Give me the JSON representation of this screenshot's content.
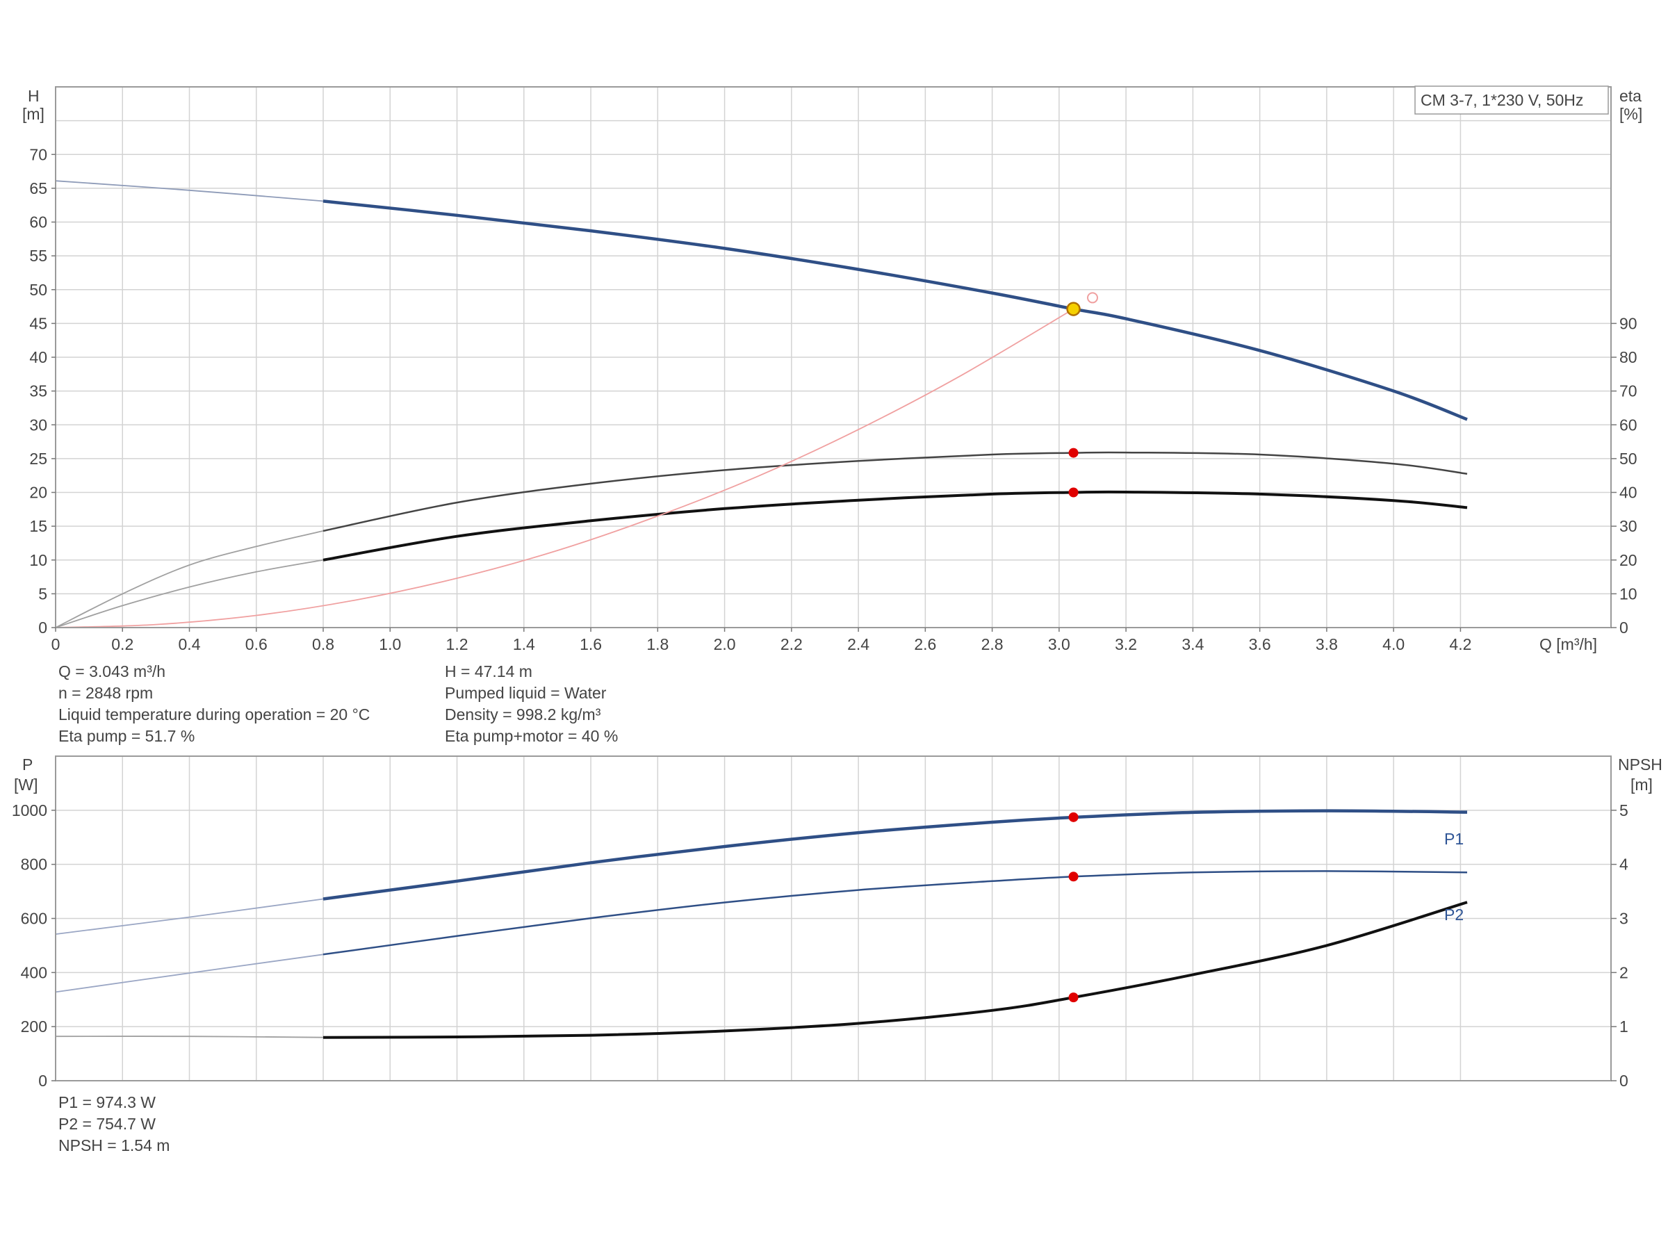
{
  "title_box": "CM 3-7, 1*230 V, 50Hz",
  "colors": {
    "head": "#2f4f86",
    "eta": "#111111",
    "eta_pump": "#444444",
    "system": "#f0a0a0",
    "power": "#2f4f86",
    "npsh": "#111111",
    "duty_point": "#e00000",
    "work_point": "#f5d000"
  },
  "info_top": {
    "left": [
      "Q = 3.043 m³/h",
      "n = 2848 rpm",
      "Liquid temperature during operation = 20 °C",
      "Eta pump = 51.7 %"
    ],
    "right": [
      "H = 47.14 m",
      "Pumped liquid = Water",
      "Density = 998.2 kg/m³",
      "Eta pump+motor = 40 %"
    ]
  },
  "info_bottom": [
    "P1 = 974.3 W",
    "P2 = 754.7 W",
    "NPSH = 1.54 m"
  ],
  "chart_data": [
    {
      "type": "line",
      "xlabel": "Q [m³/h]",
      "ylabel": "H\n[m]",
      "y2label": "eta\n[%]",
      "xlim": [
        0,
        4.65
      ],
      "ylim": [
        0,
        80
      ],
      "y2lim": [
        0,
        160
      ],
      "x_ticks": [
        "0",
        "0.2",
        "0.4",
        "0.6",
        "0.8",
        "1.0",
        "1.2",
        "1.4",
        "1.6",
        "1.8",
        "2.0",
        "2.2",
        "2.4",
        "2.6",
        "2.8",
        "3.0",
        "3.2",
        "3.4",
        "3.6",
        "3.8",
        "4.0",
        "4.2"
      ],
      "y_ticks": [
        "0",
        "5",
        "10",
        "15",
        "20",
        "25",
        "30",
        "35",
        "40",
        "45",
        "50",
        "55",
        "60",
        "65",
        "70"
      ],
      "y2_ticks": [
        "0",
        "10",
        "20",
        "30",
        "40",
        "50",
        "60",
        "70",
        "80",
        "90"
      ],
      "grid": true,
      "series": [
        {
          "id": "head",
          "axis": "left",
          "x_valid_from": 0.8,
          "x": [
            0,
            0.4,
            0.8,
            1.2,
            1.6,
            2.0,
            2.4,
            2.8,
            3.043,
            3.2,
            3.6,
            4.0,
            4.22
          ],
          "y": [
            66.1,
            64.7,
            63.1,
            61.0,
            58.7,
            56.1,
            53.0,
            49.5,
            47.14,
            45.7,
            41.0,
            35.0,
            30.8
          ]
        },
        {
          "id": "eta-pump",
          "axis": "right",
          "x_valid_from": 0.8,
          "x": [
            0,
            0.2,
            0.4,
            0.6,
            0.8,
            1.2,
            1.6,
            2.0,
            2.4,
            2.8,
            3.043,
            3.2,
            3.6,
            4.0,
            4.22
          ],
          "y": [
            0,
            10,
            18.5,
            24,
            28.6,
            37,
            42.6,
            46.6,
            49.3,
            51.2,
            51.7,
            51.8,
            51.2,
            48.5,
            45.5
          ]
        },
        {
          "id": "eta-pump-motor",
          "axis": "right",
          "x_valid_from": 0.8,
          "x": [
            0,
            0.2,
            0.4,
            0.6,
            0.8,
            1.2,
            1.6,
            2.0,
            2.4,
            2.8,
            3.043,
            3.2,
            3.6,
            4.0,
            4.22
          ],
          "y": [
            0,
            6.5,
            12,
            16.5,
            20,
            27,
            31.6,
            35.2,
            37.7,
            39.5,
            40,
            40.1,
            39.5,
            37.6,
            35.5
          ]
        },
        {
          "id": "system",
          "axis": "left",
          "x": [
            0,
            0.3,
            0.6,
            0.9,
            1.2,
            1.5,
            1.8,
            2.1,
            2.4,
            2.7,
            3.043
          ],
          "y": [
            0,
            0.45,
            1.8,
            4.1,
            7.3,
            11.4,
            16.5,
            22.4,
            29.3,
            37.1,
            47.14
          ]
        }
      ],
      "points": [
        {
          "id": "work-point",
          "x": 3.043,
          "y": 47.14,
          "axis": "left"
        },
        {
          "id": "eta-pump-point",
          "x": 3.043,
          "y": 51.7,
          "axis": "right"
        },
        {
          "id": "eta-total-point",
          "x": 3.043,
          "y": 40,
          "axis": "right"
        },
        {
          "id": "open-marker",
          "x": 3.1,
          "y": 48.8,
          "axis": "left"
        }
      ]
    },
    {
      "type": "line",
      "ylabel": "P\n[W]",
      "y2label": "NPSH\n[m]",
      "xlim": [
        0,
        4.65
      ],
      "ylim": [
        0,
        1200
      ],
      "y2lim": [
        0,
        6
      ],
      "y_ticks": [
        "0",
        "200",
        "400",
        "600",
        "800",
        "1000"
      ],
      "y2_ticks": [
        "0",
        "1",
        "2",
        "3",
        "4",
        "5"
      ],
      "grid": true,
      "series": [
        {
          "id": "p1",
          "name": "P1",
          "axis": "left",
          "x_valid_from": 0.8,
          "x": [
            0,
            0.4,
            0.8,
            1.2,
            1.6,
            2.0,
            2.4,
            2.8,
            3.043,
            3.4,
            3.8,
            4.22
          ],
          "y": [
            542,
            605,
            672,
            738,
            806,
            866,
            917,
            956,
            974,
            992,
            998,
            993
          ]
        },
        {
          "id": "p2",
          "name": "P2",
          "axis": "left",
          "x_valid_from": 0.8,
          "x": [
            0,
            0.4,
            0.8,
            1.2,
            1.6,
            2.0,
            2.4,
            2.8,
            3.043,
            3.4,
            3.8,
            4.22
          ],
          "y": [
            328,
            398,
            467,
            535,
            601,
            659,
            705,
            738,
            754.7,
            770,
            775,
            770
          ]
        },
        {
          "id": "npsh",
          "axis": "right",
          "x_valid_from": 0.8,
          "x": [
            0,
            0.4,
            0.8,
            1.2,
            1.6,
            2.0,
            2.4,
            2.8,
            3.043,
            3.4,
            3.8,
            4.22
          ],
          "y": [
            0.82,
            0.82,
            0.8,
            0.81,
            0.84,
            0.92,
            1.06,
            1.3,
            1.54,
            1.96,
            2.5,
            3.3
          ]
        }
      ],
      "points": [
        {
          "id": "p1-point",
          "x": 3.043,
          "y": 974.3,
          "axis": "left"
        },
        {
          "id": "p2-point",
          "x": 3.043,
          "y": 754.7,
          "axis": "left"
        },
        {
          "id": "npsh-point",
          "x": 3.043,
          "y": 1.54,
          "axis": "right"
        }
      ]
    }
  ]
}
